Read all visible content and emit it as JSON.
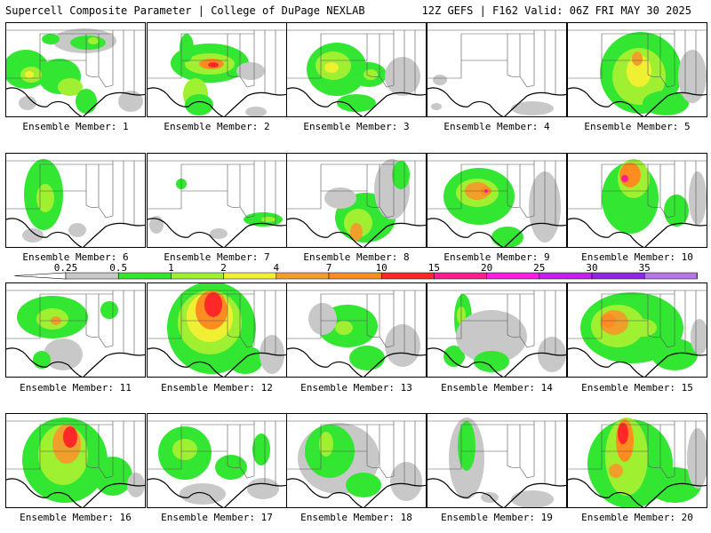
{
  "header": {
    "left": "Supercell Composite Parameter | College of DuPage NEXLAB",
    "right": "12Z GEFS | F162 Valid: 06Z FRI MAY 30 2025"
  },
  "legend": {
    "labels": [
      "0.25",
      "0.5",
      "1",
      "2",
      "4",
      "7",
      "10",
      "15",
      "20",
      "25",
      "30",
      "35"
    ],
    "colors": [
      "#c8c8c8",
      "#32e632",
      "#a0f032",
      "#f0f032",
      "#f0a02a",
      "#ff8c1e",
      "#ff2828",
      "#ff1e8c",
      "#ff1edc",
      "#c81ef0",
      "#8c28e6",
      "#b478e6",
      "#50e6e6"
    ]
  },
  "panels": [
    {
      "caption": "Ensemble Member: 1",
      "fields": [
        {
          "level": 1,
          "x": 22,
          "y": 52,
          "rx": 26,
          "ry": 22
        },
        {
          "level": 1,
          "x": 60,
          "y": 60,
          "rx": 24,
          "ry": 20
        },
        {
          "level": 2,
          "x": 28,
          "y": 58,
          "rx": 12,
          "ry": 9
        },
        {
          "level": 3,
          "x": 26,
          "y": 58,
          "rx": 5,
          "ry": 4
        },
        {
          "level": 0,
          "x": 88,
          "y": 20,
          "rx": 36,
          "ry": 14
        },
        {
          "level": 1,
          "x": 92,
          "y": 22,
          "rx": 20,
          "ry": 8
        },
        {
          "level": 2,
          "x": 98,
          "y": 20,
          "rx": 6,
          "ry": 4
        },
        {
          "level": 1,
          "x": 50,
          "y": 18,
          "rx": 10,
          "ry": 6
        },
        {
          "level": 2,
          "x": 72,
          "y": 72,
          "rx": 14,
          "ry": 10
        },
        {
          "level": 1,
          "x": 90,
          "y": 88,
          "rx": 12,
          "ry": 14
        },
        {
          "level": 0,
          "x": 140,
          "y": 88,
          "rx": 14,
          "ry": 12
        },
        {
          "level": 0,
          "x": 24,
          "y": 90,
          "rx": 10,
          "ry": 8
        }
      ]
    },
    {
      "caption": "Ensemble Member: 2",
      "fields": [
        {
          "level": 1,
          "x": 70,
          "y": 45,
          "rx": 44,
          "ry": 22
        },
        {
          "level": 2,
          "x": 70,
          "y": 46,
          "rx": 28,
          "ry": 12
        },
        {
          "level": 5,
          "x": 72,
          "y": 46,
          "rx": 14,
          "ry": 6
        },
        {
          "level": 6,
          "x": 74,
          "y": 47,
          "rx": 6,
          "ry": 3
        },
        {
          "level": 1,
          "x": 44,
          "y": 28,
          "rx": 8,
          "ry": 16
        },
        {
          "level": 2,
          "x": 54,
          "y": 80,
          "rx": 14,
          "ry": 18
        },
        {
          "level": 1,
          "x": 58,
          "y": 92,
          "rx": 16,
          "ry": 12
        },
        {
          "level": 0,
          "x": 122,
          "y": 100,
          "rx": 12,
          "ry": 6
        },
        {
          "level": 0,
          "x": 116,
          "y": 54,
          "rx": 16,
          "ry": 10
        }
      ]
    },
    {
      "caption": "Ensemble Member: 3",
      "fields": [
        {
          "level": 1,
          "x": 56,
          "y": 52,
          "rx": 34,
          "ry": 30
        },
        {
          "level": 2,
          "x": 52,
          "y": 48,
          "rx": 20,
          "ry": 16
        },
        {
          "level": 3,
          "x": 50,
          "y": 50,
          "rx": 8,
          "ry": 6
        },
        {
          "level": 1,
          "x": 92,
          "y": 58,
          "rx": 20,
          "ry": 14
        },
        {
          "level": 2,
          "x": 94,
          "y": 58,
          "rx": 8,
          "ry": 6
        },
        {
          "level": 1,
          "x": 78,
          "y": 90,
          "rx": 22,
          "ry": 10
        },
        {
          "level": 0,
          "x": 130,
          "y": 60,
          "rx": 20,
          "ry": 22
        }
      ]
    },
    {
      "caption": "Ensemble Member: 4",
      "fields": [
        {
          "level": 0,
          "x": 118,
          "y": 96,
          "rx": 24,
          "ry": 8
        },
        {
          "level": 0,
          "x": 14,
          "y": 64,
          "rx": 8,
          "ry": 6
        },
        {
          "level": 0,
          "x": 10,
          "y": 94,
          "rx": 6,
          "ry": 4
        }
      ]
    },
    {
      "caption": "Ensemble Member: 5",
      "fields": [
        {
          "level": 1,
          "x": 82,
          "y": 56,
          "rx": 46,
          "ry": 46
        },
        {
          "level": 2,
          "x": 80,
          "y": 60,
          "rx": 30,
          "ry": 32
        },
        {
          "level": 3,
          "x": 80,
          "y": 54,
          "rx": 14,
          "ry": 18
        },
        {
          "level": 4,
          "x": 78,
          "y": 40,
          "rx": 6,
          "ry": 8
        },
        {
          "level": 1,
          "x": 110,
          "y": 90,
          "rx": 26,
          "ry": 14
        },
        {
          "level": 0,
          "x": 140,
          "y": 60,
          "rx": 16,
          "ry": 30
        }
      ]
    },
    {
      "caption": "Ensemble Member: 6",
      "fields": [
        {
          "level": 1,
          "x": 42,
          "y": 46,
          "rx": 22,
          "ry": 40
        },
        {
          "level": 2,
          "x": 44,
          "y": 50,
          "rx": 10,
          "ry": 16
        },
        {
          "level": 0,
          "x": 80,
          "y": 86,
          "rx": 10,
          "ry": 8
        },
        {
          "level": 0,
          "x": 30,
          "y": 92,
          "rx": 12,
          "ry": 8
        }
      ]
    },
    {
      "caption": "Ensemble Member: 7",
      "fields": [
        {
          "level": 1,
          "x": 38,
          "y": 34,
          "rx": 6,
          "ry": 6
        },
        {
          "level": 1,
          "x": 130,
          "y": 74,
          "rx": 22,
          "ry": 8
        },
        {
          "level": 2,
          "x": 136,
          "y": 74,
          "rx": 8,
          "ry": 3
        },
        {
          "level": 0,
          "x": 10,
          "y": 80,
          "rx": 8,
          "ry": 10
        },
        {
          "level": 0,
          "x": 80,
          "y": 90,
          "rx": 10,
          "ry": 6
        }
      ]
    },
    {
      "caption": "Ensemble Member: 8",
      "fields": [
        {
          "level": 1,
          "x": 88,
          "y": 72,
          "rx": 34,
          "ry": 28
        },
        {
          "level": 2,
          "x": 80,
          "y": 78,
          "rx": 16,
          "ry": 16
        },
        {
          "level": 4,
          "x": 78,
          "y": 88,
          "rx": 7,
          "ry": 10
        },
        {
          "level": 0,
          "x": 118,
          "y": 40,
          "rx": 20,
          "ry": 34
        },
        {
          "level": 1,
          "x": 128,
          "y": 24,
          "rx": 10,
          "ry": 16
        },
        {
          "level": 0,
          "x": 60,
          "y": 50,
          "rx": 18,
          "ry": 12
        }
      ]
    },
    {
      "caption": "Ensemble Member: 9",
      "fields": [
        {
          "level": 1,
          "x": 58,
          "y": 48,
          "rx": 40,
          "ry": 32
        },
        {
          "level": 2,
          "x": 56,
          "y": 44,
          "rx": 24,
          "ry": 16
        },
        {
          "level": 4,
          "x": 56,
          "y": 42,
          "rx": 14,
          "ry": 10
        },
        {
          "level": 5,
          "x": 66,
          "y": 42,
          "rx": 6,
          "ry": 5
        },
        {
          "level": 7,
          "x": 66,
          "y": 42,
          "rx": 2,
          "ry": 2
        },
        {
          "level": 1,
          "x": 90,
          "y": 94,
          "rx": 18,
          "ry": 12
        },
        {
          "level": 0,
          "x": 132,
          "y": 60,
          "rx": 18,
          "ry": 40
        }
      ]
    },
    {
      "caption": "Ensemble Member: 10",
      "fields": [
        {
          "level": 1,
          "x": 70,
          "y": 50,
          "rx": 32,
          "ry": 40
        },
        {
          "level": 2,
          "x": 74,
          "y": 28,
          "rx": 18,
          "ry": 22
        },
        {
          "level": 5,
          "x": 70,
          "y": 24,
          "rx": 12,
          "ry": 14
        },
        {
          "level": 7,
          "x": 64,
          "y": 28,
          "rx": 4,
          "ry": 4
        },
        {
          "level": 1,
          "x": 122,
          "y": 64,
          "rx": 14,
          "ry": 18
        },
        {
          "level": 0,
          "x": 146,
          "y": 50,
          "rx": 10,
          "ry": 30
        }
      ]
    },
    {
      "caption": "Ensemble Member: 11",
      "fields": [
        {
          "level": 1,
          "x": 52,
          "y": 38,
          "rx": 40,
          "ry": 24
        },
        {
          "level": 2,
          "x": 52,
          "y": 40,
          "rx": 18,
          "ry": 12
        },
        {
          "level": 4,
          "x": 56,
          "y": 42,
          "rx": 6,
          "ry": 5
        },
        {
          "level": 0,
          "x": 64,
          "y": 80,
          "rx": 22,
          "ry": 18
        },
        {
          "level": 1,
          "x": 40,
          "y": 86,
          "rx": 10,
          "ry": 10
        },
        {
          "level": 1,
          "x": 116,
          "y": 30,
          "rx": 10,
          "ry": 10
        }
      ]
    },
    {
      "caption": "Ensemble Member: 12",
      "fields": [
        {
          "level": 1,
          "x": 72,
          "y": 50,
          "rx": 50,
          "ry": 52
        },
        {
          "level": 2,
          "x": 70,
          "y": 44,
          "rx": 36,
          "ry": 36
        },
        {
          "level": 3,
          "x": 70,
          "y": 38,
          "rx": 26,
          "ry": 28
        },
        {
          "level": 5,
          "x": 72,
          "y": 30,
          "rx": 18,
          "ry": 22
        },
        {
          "level": 6,
          "x": 74,
          "y": 24,
          "rx": 10,
          "ry": 14
        },
        {
          "level": 1,
          "x": 110,
          "y": 86,
          "rx": 20,
          "ry": 16
        },
        {
          "level": 0,
          "x": 140,
          "y": 80,
          "rx": 14,
          "ry": 22
        }
      ]
    },
    {
      "caption": "Ensemble Member: 13",
      "fields": [
        {
          "level": 1,
          "x": 68,
          "y": 48,
          "rx": 34,
          "ry": 24
        },
        {
          "level": 2,
          "x": 64,
          "y": 50,
          "rx": 10,
          "ry": 8
        },
        {
          "level": 0,
          "x": 40,
          "y": 40,
          "rx": 16,
          "ry": 18
        },
        {
          "level": 1,
          "x": 90,
          "y": 84,
          "rx": 20,
          "ry": 14
        },
        {
          "level": 0,
          "x": 130,
          "y": 70,
          "rx": 20,
          "ry": 24
        }
      ]
    },
    {
      "caption": "Ensemble Member: 14",
      "fields": [
        {
          "level": 1,
          "x": 40,
          "y": 40,
          "rx": 10,
          "ry": 28
        },
        {
          "level": 2,
          "x": 38,
          "y": 36,
          "rx": 5,
          "ry": 10
        },
        {
          "level": 1,
          "x": 30,
          "y": 82,
          "rx": 12,
          "ry": 12
        },
        {
          "level": 0,
          "x": 72,
          "y": 60,
          "rx": 40,
          "ry": 30
        },
        {
          "level": 1,
          "x": 72,
          "y": 88,
          "rx": 20,
          "ry": 12
        },
        {
          "level": 0,
          "x": 140,
          "y": 80,
          "rx": 16,
          "ry": 20
        }
      ]
    },
    {
      "caption": "Ensemble Member: 15",
      "fields": [
        {
          "level": 1,
          "x": 72,
          "y": 50,
          "rx": 58,
          "ry": 40
        },
        {
          "level": 2,
          "x": 56,
          "y": 48,
          "rx": 30,
          "ry": 24
        },
        {
          "level": 4,
          "x": 52,
          "y": 44,
          "rx": 16,
          "ry": 14
        },
        {
          "level": 5,
          "x": 46,
          "y": 42,
          "rx": 8,
          "ry": 8
        },
        {
          "level": 2,
          "x": 84,
          "y": 50,
          "rx": 16,
          "ry": 10
        },
        {
          "level": 1,
          "x": 120,
          "y": 80,
          "rx": 26,
          "ry": 18
        },
        {
          "level": 0,
          "x": 148,
          "y": 60,
          "rx": 10,
          "ry": 20
        }
      ]
    },
    {
      "caption": "Ensemble Member: 16",
      "fields": [
        {
          "level": 1,
          "x": 66,
          "y": 52,
          "rx": 48,
          "ry": 48
        },
        {
          "level": 2,
          "x": 64,
          "y": 46,
          "rx": 28,
          "ry": 34
        },
        {
          "level": 4,
          "x": 68,
          "y": 34,
          "rx": 16,
          "ry": 22
        },
        {
          "level": 6,
          "x": 72,
          "y": 26,
          "rx": 8,
          "ry": 12
        },
        {
          "level": 1,
          "x": 120,
          "y": 70,
          "rx": 22,
          "ry": 22
        },
        {
          "level": 0,
          "x": 146,
          "y": 80,
          "rx": 10,
          "ry": 14
        }
      ]
    },
    {
      "caption": "Ensemble Member: 17",
      "fields": [
        {
          "level": 1,
          "x": 42,
          "y": 44,
          "rx": 30,
          "ry": 30
        },
        {
          "level": 2,
          "x": 42,
          "y": 40,
          "rx": 14,
          "ry": 12
        },
        {
          "level": 1,
          "x": 94,
          "y": 60,
          "rx": 18,
          "ry": 14
        },
        {
          "level": 1,
          "x": 128,
          "y": 40,
          "rx": 10,
          "ry": 18
        },
        {
          "level": 0,
          "x": 62,
          "y": 90,
          "rx": 26,
          "ry": 12
        },
        {
          "level": 0,
          "x": 130,
          "y": 84,
          "rx": 18,
          "ry": 12
        }
      ]
    },
    {
      "caption": "Ensemble Member: 18",
      "fields": [
        {
          "level": 0,
          "x": 58,
          "y": 50,
          "rx": 46,
          "ry": 40
        },
        {
          "level": 1,
          "x": 48,
          "y": 42,
          "rx": 28,
          "ry": 30
        },
        {
          "level": 2,
          "x": 44,
          "y": 34,
          "rx": 8,
          "ry": 14
        },
        {
          "level": 1,
          "x": 86,
          "y": 80,
          "rx": 20,
          "ry": 14
        },
        {
          "level": 0,
          "x": 134,
          "y": 76,
          "rx": 18,
          "ry": 22
        }
      ]
    },
    {
      "caption": "Ensemble Member: 19",
      "fields": [
        {
          "level": 0,
          "x": 44,
          "y": 50,
          "rx": 20,
          "ry": 46
        },
        {
          "level": 1,
          "x": 44,
          "y": 36,
          "rx": 10,
          "ry": 28
        },
        {
          "level": 0,
          "x": 118,
          "y": 96,
          "rx": 24,
          "ry": 10
        },
        {
          "level": 0,
          "x": 70,
          "y": 94,
          "rx": 10,
          "ry": 6
        }
      ]
    },
    {
      "caption": "Ensemble Member: 20",
      "fields": [
        {
          "level": 1,
          "x": 70,
          "y": 56,
          "rx": 48,
          "ry": 50
        },
        {
          "level": 2,
          "x": 66,
          "y": 48,
          "rx": 24,
          "ry": 44
        },
        {
          "level": 5,
          "x": 64,
          "y": 30,
          "rx": 10,
          "ry": 24
        },
        {
          "level": 6,
          "x": 62,
          "y": 22,
          "rx": 6,
          "ry": 12
        },
        {
          "level": 4,
          "x": 54,
          "y": 64,
          "rx": 8,
          "ry": 8
        },
        {
          "level": 1,
          "x": 120,
          "y": 80,
          "rx": 30,
          "ry": 20
        },
        {
          "level": 0,
          "x": 146,
          "y": 50,
          "rx": 12,
          "ry": 34
        }
      ]
    }
  ]
}
